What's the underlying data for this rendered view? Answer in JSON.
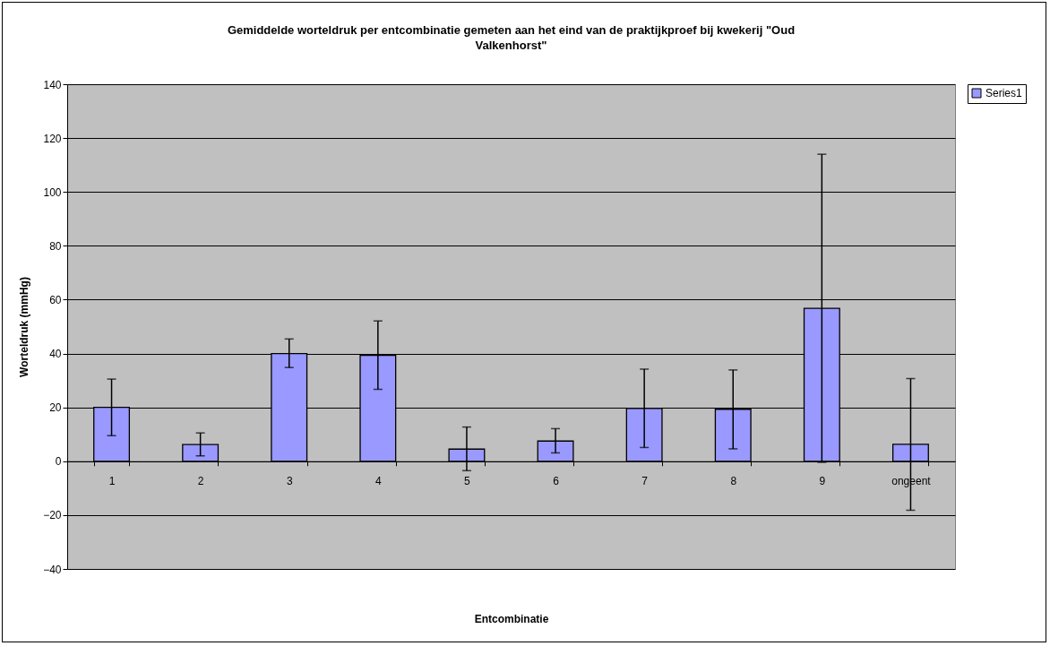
{
  "chart_data": {
    "type": "bar",
    "title": "Gemiddelde worteldruk per entcombinatie gemeten aan het eind van de praktijkproef bij kwekerij \"Oud Valkenhorst\"",
    "xlabel": "Entcombinatie",
    "ylabel": "Worteldruk (mmHg)",
    "categories": [
      "1",
      "2",
      "3",
      "4",
      "5",
      "6",
      "7",
      "8",
      "9",
      "ongeent"
    ],
    "series": [
      {
        "name": "Series1",
        "color": "#9999ff",
        "values": [
          20,
          6.2,
          40,
          39.3,
          4.5,
          7.5,
          19.6,
          19.3,
          56.8,
          6.3
        ],
        "errors": [
          [
            9.5,
            30.5
          ],
          [
            2.0,
            10.5
          ],
          [
            34.8,
            45.4
          ],
          [
            26.7,
            52.1
          ],
          [
            -3.5,
            12.7
          ],
          [
            3.1,
            12.1
          ],
          [
            5.1,
            34.2
          ],
          [
            4.6,
            33.9
          ],
          [
            -0.4,
            114
          ],
          [
            -18.2,
            30.7
          ]
        ]
      }
    ],
    "ylim": [
      -40,
      140
    ],
    "yticks": [
      -40,
      -20,
      0,
      20,
      40,
      60,
      80,
      100,
      120,
      140
    ],
    "grid": "y",
    "legend": "right"
  }
}
